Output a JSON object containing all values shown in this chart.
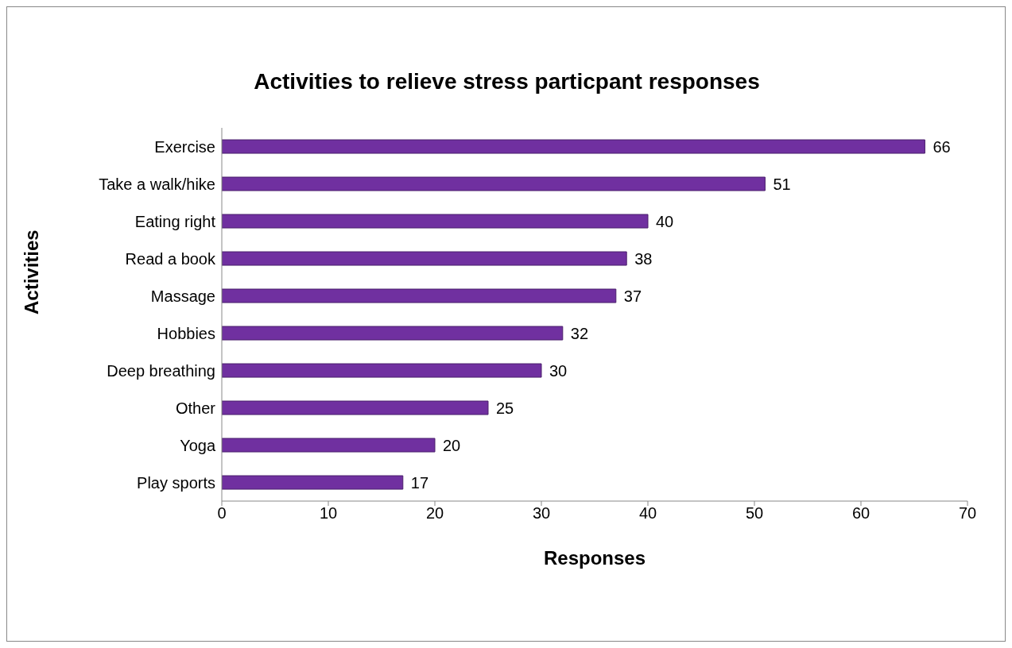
{
  "chart_data": {
    "type": "bar",
    "orientation": "horizontal",
    "title": "Activities to relieve stress particpant responses",
    "xlabel": "Responses",
    "ylabel": "Activities",
    "categories": [
      "Exercise",
      "Take a walk/hike",
      "Eating right",
      "Read a book",
      "Massage",
      "Hobbies",
      "Deep breathing",
      "Other",
      "Yoga",
      "Play sports"
    ],
    "values": [
      66,
      51,
      40,
      38,
      37,
      32,
      30,
      25,
      20,
      17
    ],
    "color": "#7030a0",
    "xlim": [
      0,
      70
    ],
    "xticks": [
      0,
      10,
      20,
      30,
      40,
      50,
      60,
      70
    ],
    "grid": false,
    "legend": false,
    "data_labels": true
  }
}
